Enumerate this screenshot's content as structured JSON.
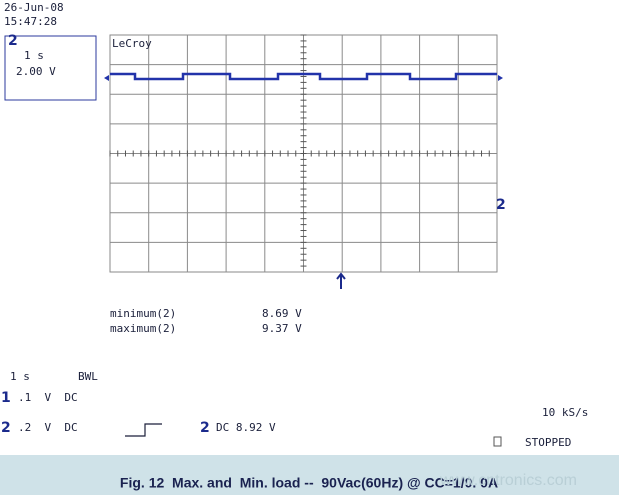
{
  "header": {
    "date": "26-Jun-08",
    "time": "15:47:28",
    "brand": "LeCroy"
  },
  "channel_box": {
    "channel": "2",
    "timebase": "1 s",
    "volts": "2.00 V"
  },
  "markers": {
    "right_channel": "2"
  },
  "measurements": [
    {
      "label": "minimum(2)",
      "value": "8.69 V"
    },
    {
      "label": "maximum(2)",
      "value": "9.37 V"
    }
  ],
  "footer": {
    "timebase": "1 s",
    "bwl": "BWL",
    "channels": [
      {
        "id": "1",
        "settings": ".1  V  DC"
      },
      {
        "id": "2",
        "settings": ".2  V  DC"
      }
    ],
    "trigger": {
      "id": "2",
      "level": "DC 8.92 V"
    },
    "sample_rate": "10 kS/s",
    "status": "STOPPED"
  },
  "caption": "Fig. 12  Max. and  Min. load --  90Vac(60Hz) @ CC=1/0. 0A",
  "watermark": "www.cntronics.com"
}
